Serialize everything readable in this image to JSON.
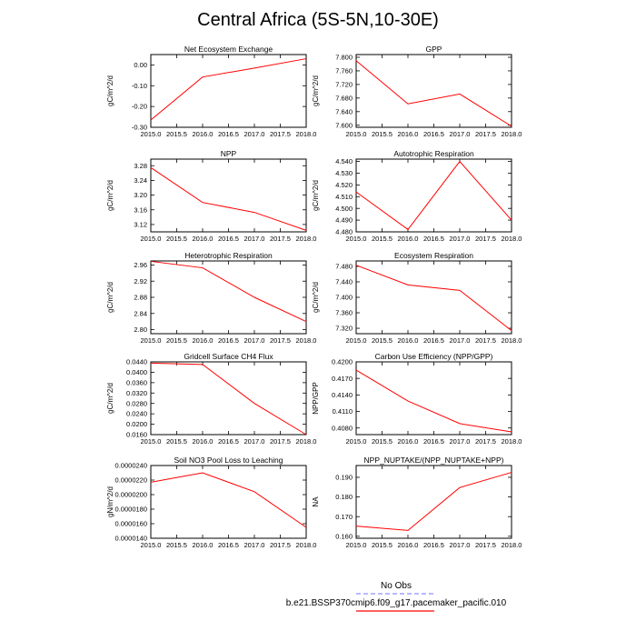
{
  "title": "Central Africa (5S-5N,10-30E)",
  "colors": {
    "series": "#ff0000",
    "obs": "#8f8fff",
    "axis": "#000000"
  },
  "legend": {
    "obs_label": "No Obs",
    "model_label": "b.e21.BSSP370cmip6.f09_g17.pacemaker_pacific.010"
  },
  "chart_data": [
    {
      "type": "line",
      "title": "Net Ecosystem Exchange",
      "ylabel": "gC/m^2/d",
      "x": [
        2015,
        2016,
        2017,
        2018
      ],
      "series": [
        {
          "values": [
            -0.265,
            -0.058,
            -0.015,
            0.03
          ]
        }
      ],
      "xlim": [
        2015,
        2018
      ],
      "ylim": [
        -0.3,
        0.05
      ],
      "xticks": [
        2015,
        2015.5,
        2016,
        2016.5,
        2017,
        2017.5,
        2018
      ],
      "xtick_labels": [
        "2015.0",
        "2015.5",
        "2016.0",
        "2016.5",
        "2017.0",
        "2017.5",
        "2018.0"
      ],
      "yticks": [
        -0.3,
        -0.2,
        -0.1,
        0.0
      ],
      "ytick_labels": [
        "-0.30",
        "-0.20",
        "-0.10",
        "0.00"
      ]
    },
    {
      "type": "line",
      "title": "GPP",
      "ylabel": "gC/m^2/d",
      "x": [
        2015,
        2016,
        2017,
        2018
      ],
      "series": [
        {
          "values": [
            7.79,
            7.663,
            7.692,
            7.597
          ]
        }
      ],
      "xlim": [
        2015,
        2018
      ],
      "ylim": [
        7.594,
        7.808
      ],
      "xticks": [
        2015,
        2015.5,
        2016,
        2016.5,
        2017,
        2017.5,
        2018
      ],
      "xtick_labels": [
        "2015.0",
        "2015.5",
        "2016.0",
        "2016.5",
        "2017.0",
        "2017.5",
        "2018.0"
      ],
      "yticks": [
        7.6,
        7.64,
        7.68,
        7.72,
        7.76,
        7.8
      ],
      "ytick_labels": [
        "7.600",
        "7.640",
        "7.680",
        "7.720",
        "7.760",
        "7.800"
      ]
    },
    {
      "type": "line",
      "title": "NPP",
      "ylabel": "gC/m^2/d",
      "x": [
        2015,
        2016,
        2017,
        2018
      ],
      "series": [
        {
          "values": [
            3.275,
            3.18,
            3.153,
            3.104
          ]
        }
      ],
      "xlim": [
        2015,
        2018
      ],
      "ylim": [
        3.1,
        3.298
      ],
      "xticks": [
        2015,
        2015.5,
        2016,
        2016.5,
        2017,
        2017.5,
        2018
      ],
      "xtick_labels": [
        "2015.0",
        "2015.5",
        "2016.0",
        "2016.5",
        "2017.0",
        "2017.5",
        "2018.0"
      ],
      "yticks": [
        3.12,
        3.16,
        3.2,
        3.24,
        3.28
      ],
      "ytick_labels": [
        "3.12",
        "3.16",
        "3.20",
        "3.24",
        "3.28"
      ]
    },
    {
      "type": "line",
      "title": "Autotrophic Respiration",
      "ylabel": "gC/m^2/d",
      "x": [
        2015,
        2016,
        2017,
        2018
      ],
      "series": [
        {
          "values": [
            4.514,
            4.482,
            4.54,
            4.49
          ]
        }
      ],
      "xlim": [
        2015,
        2018
      ],
      "ylim": [
        4.48,
        4.542
      ],
      "xticks": [
        2015,
        2015.5,
        2016,
        2016.5,
        2017,
        2017.5,
        2018
      ],
      "xtick_labels": [
        "2015.0",
        "2015.5",
        "2016.0",
        "2016.5",
        "2017.0",
        "2017.5",
        "2018.0"
      ],
      "yticks": [
        4.48,
        4.49,
        4.5,
        4.51,
        4.52,
        4.53,
        4.54
      ],
      "ytick_labels": [
        "4.480",
        "4.490",
        "4.500",
        "4.510",
        "4.520",
        "4.530",
        "4.540"
      ]
    },
    {
      "type": "line",
      "title": "Heterotrophic Respiration",
      "ylabel": "gC/m^2/d",
      "x": [
        2015,
        2016,
        2017,
        2018
      ],
      "series": [
        {
          "values": [
            2.969,
            2.953,
            2.88,
            2.82
          ]
        }
      ],
      "xlim": [
        2015,
        2018
      ],
      "ylim": [
        2.79,
        2.97
      ],
      "xticks": [
        2015,
        2015.5,
        2016,
        2016.5,
        2017,
        2017.5,
        2018
      ],
      "xtick_labels": [
        "2015.0",
        "2015.5",
        "2016.0",
        "2016.5",
        "2017.0",
        "2017.5",
        "2018.0"
      ],
      "yticks": [
        2.8,
        2.84,
        2.88,
        2.92,
        2.96
      ],
      "ytick_labels": [
        "2.80",
        "2.84",
        "2.88",
        "2.92",
        "2.96"
      ]
    },
    {
      "type": "line",
      "title": "Ecosystem Respiration",
      "ylabel": "gC/m^2/d",
      "x": [
        2015,
        2016,
        2017,
        2018
      ],
      "series": [
        {
          "values": [
            7.483,
            7.432,
            7.418,
            7.314
          ]
        }
      ],
      "xlim": [
        2015,
        2018
      ],
      "ylim": [
        7.306,
        7.494
      ],
      "xticks": [
        2015,
        2015.5,
        2016,
        2016.5,
        2017,
        2017.5,
        2018
      ],
      "xtick_labels": [
        "2015.0",
        "2015.5",
        "2016.0",
        "2016.5",
        "2017.0",
        "2017.5",
        "2018.0"
      ],
      "yticks": [
        7.32,
        7.36,
        7.4,
        7.44,
        7.48
      ],
      "ytick_labels": [
        "7.320",
        "7.360",
        "7.400",
        "7.440",
        "7.480"
      ]
    },
    {
      "type": "line",
      "title": "Gridcell Surface CH4 Flux",
      "ylabel": "gC/m^2/d",
      "x": [
        2015,
        2016,
        2017,
        2018
      ],
      "series": [
        {
          "values": [
            0.0435,
            0.043,
            0.028,
            0.016
          ]
        }
      ],
      "xlim": [
        2015,
        2018
      ],
      "ylim": [
        0.016,
        0.044
      ],
      "xticks": [
        2015,
        2015.5,
        2016,
        2016.5,
        2017,
        2017.5,
        2018
      ],
      "xtick_labels": [
        "2015.0",
        "2015.5",
        "2016.0",
        "2016.5",
        "2017.0",
        "2017.5",
        "2018.0"
      ],
      "yticks": [
        0.016,
        0.02,
        0.024,
        0.028,
        0.032,
        0.036,
        0.04,
        0.044
      ],
      "ytick_labels": [
        "0.0160",
        "0.0200",
        "0.0240",
        "0.0280",
        "0.0320",
        "0.0360",
        "0.0400",
        "0.0440"
      ]
    },
    {
      "type": "line",
      "title": "Carbon Use Efficiency (NPP/GPP)",
      "ylabel": "NPP/GPP",
      "x": [
        2015,
        2016,
        2017,
        2018
      ],
      "series": [
        {
          "values": [
            0.4185,
            0.4129,
            0.4088,
            0.4073
          ]
        }
      ],
      "xlim": [
        2015,
        2018
      ],
      "ylim": [
        0.4068,
        0.42
      ],
      "xticks": [
        2015,
        2015.5,
        2016,
        2016.5,
        2017,
        2017.5,
        2018
      ],
      "xtick_labels": [
        "2015.0",
        "2015.5",
        "2016.0",
        "2016.5",
        "2017.0",
        "2017.5",
        "2018.0"
      ],
      "yticks": [
        0.408,
        0.411,
        0.414,
        0.417,
        0.42
      ],
      "ytick_labels": [
        "0.4080",
        "0.4110",
        "0.4140",
        "0.4170",
        "0.4200"
      ]
    },
    {
      "type": "line",
      "title": "Soil NO3 Pool Loss to Leaching",
      "ylabel": "gN/m^2/d",
      "x": [
        2015,
        2016,
        2017,
        2018
      ],
      "series": [
        {
          "values": [
            2.17e-05,
            2.3e-05,
            2.04e-05,
            1.55e-05
          ]
        }
      ],
      "xlim": [
        2015,
        2018
      ],
      "ylim": [
        1.4e-05,
        2.4e-05
      ],
      "xticks": [
        2015,
        2015.5,
        2016,
        2016.5,
        2017,
        2017.5,
        2018
      ],
      "xtick_labels": [
        "2015.0",
        "2015.5",
        "2016.0",
        "2016.5",
        "2017.0",
        "2017.5",
        "2018.0"
      ],
      "yticks": [
        1.4e-05,
        1.6e-05,
        1.8e-05,
        2e-05,
        2.2e-05,
        2.4e-05
      ],
      "ytick_labels": [
        "0.0000140",
        "0.0000160",
        "0.0000180",
        "0.0000200",
        "0.0000220",
        "0.0000240"
      ]
    },
    {
      "type": "line",
      "title": "NPP_NUPTAKE/(NPP_NUPTAKE+NPP)",
      "ylabel": "NA",
      "x": [
        2015,
        2016,
        2017,
        2018
      ],
      "series": [
        {
          "values": [
            0.1652,
            0.163,
            0.1848,
            0.1925
          ]
        }
      ],
      "xlim": [
        2015,
        2018
      ],
      "ylim": [
        0.159,
        0.196
      ],
      "xticks": [
        2015,
        2015.5,
        2016,
        2016.5,
        2017,
        2017.5,
        2018
      ],
      "xtick_labels": [
        "2015.0",
        "2015.5",
        "2016.0",
        "2016.5",
        "2017.0",
        "2017.5",
        "2018.0"
      ],
      "yticks": [
        0.16,
        0.17,
        0.18,
        0.19
      ],
      "ytick_labels": [
        "0.160",
        "0.170",
        "0.180",
        "0.190"
      ]
    }
  ]
}
